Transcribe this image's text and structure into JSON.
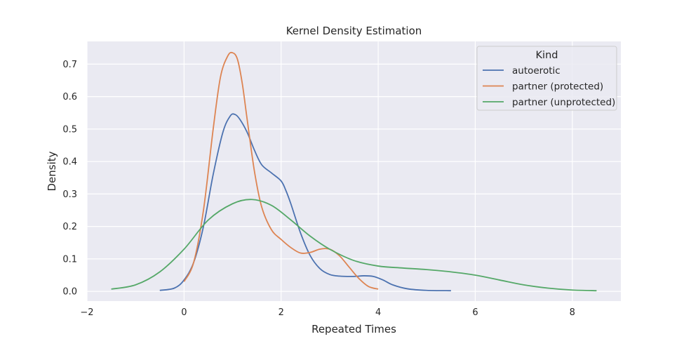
{
  "chart_data": {
    "type": "line",
    "title": "Kernel Density Estimation",
    "xlabel": "Repeated Times",
    "ylabel": "Density",
    "xlim": [
      -2,
      9
    ],
    "ylim": [
      -0.03,
      0.77
    ],
    "xticks": [
      -2,
      0,
      2,
      4,
      6,
      8
    ],
    "yticks": [
      0.0,
      0.1,
      0.2,
      0.3,
      0.4,
      0.5,
      0.6,
      0.7
    ],
    "grid": true,
    "background": "#eaeaf2",
    "legend": {
      "title": "Kind",
      "placement": "top-right"
    },
    "series": [
      {
        "name": "autoerotic",
        "color": "#4c72b0",
        "x": [
          -0.5,
          -0.2,
          0.0,
          0.2,
          0.4,
          0.6,
          0.8,
          0.95,
          1.05,
          1.15,
          1.3,
          1.45,
          1.6,
          1.8,
          2.0,
          2.1,
          2.2,
          2.4,
          2.6,
          2.8,
          3.0,
          3.2,
          3.5,
          3.7,
          3.9,
          4.1,
          4.3,
          4.6,
          5.0,
          5.5
        ],
        "y": [
          0.003,
          0.01,
          0.035,
          0.09,
          0.2,
          0.36,
          0.49,
          0.54,
          0.545,
          0.53,
          0.49,
          0.435,
          0.39,
          0.365,
          0.34,
          0.31,
          0.27,
          0.18,
          0.11,
          0.07,
          0.052,
          0.047,
          0.046,
          0.048,
          0.046,
          0.035,
          0.02,
          0.008,
          0.003,
          0.002
        ]
      },
      {
        "name": "partner (protected)",
        "color": "#dd8452",
        "x": [
          0.0,
          0.2,
          0.4,
          0.6,
          0.75,
          0.9,
          1.0,
          1.1,
          1.2,
          1.3,
          1.45,
          1.6,
          1.8,
          2.0,
          2.2,
          2.4,
          2.6,
          2.8,
          3.0,
          3.2,
          3.4,
          3.6,
          3.8,
          4.0
        ],
        "y": [
          0.03,
          0.09,
          0.25,
          0.5,
          0.66,
          0.725,
          0.735,
          0.715,
          0.64,
          0.53,
          0.37,
          0.26,
          0.19,
          0.16,
          0.135,
          0.118,
          0.12,
          0.13,
          0.13,
          0.11,
          0.075,
          0.04,
          0.015,
          0.007
        ]
      },
      {
        "name": "partner (unprotected)",
        "color": "#55a868",
        "x": [
          -1.5,
          -1.0,
          -0.5,
          0.0,
          0.5,
          1.0,
          1.4,
          1.8,
          2.2,
          2.6,
          3.0,
          3.5,
          4.0,
          4.5,
          5.0,
          5.5,
          6.0,
          6.5,
          7.0,
          7.5,
          8.0,
          8.5
        ],
        "y": [
          0.007,
          0.02,
          0.06,
          0.13,
          0.22,
          0.27,
          0.283,
          0.265,
          0.22,
          0.17,
          0.13,
          0.095,
          0.078,
          0.072,
          0.067,
          0.06,
          0.05,
          0.035,
          0.02,
          0.01,
          0.004,
          0.002
        ]
      }
    ]
  }
}
